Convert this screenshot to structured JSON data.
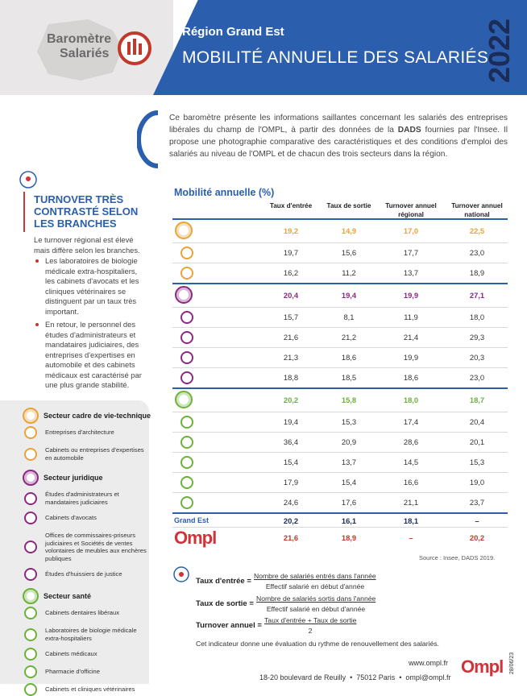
{
  "header": {
    "badge_line1": "Baromètre",
    "badge_line2": "Salariés",
    "region": "Région Grand Est",
    "title": "MOBILITÉ ANNUELLE DES SALARIÉS",
    "year": "2022"
  },
  "intro": {
    "before": "Ce baromètre présente les informations saillantes concernant les salariés des entreprises libérales du champ de l'OMPL, à partir des données de la ",
    "bold": "DADS",
    "after": " fournies par l'Insee. Il propose une photographie comparative des caractéristiques et des conditions d'emploi des salariés au niveau de l'OMPL et de chacun des trois secteurs dans la région."
  },
  "sidebar": {
    "title": "TURNOVER TRÈS CONTRASTÉ SELON LES BRANCHES",
    "paragraph": "Le turnover régional est élevé mais diffère selon les branches.",
    "bullets": [
      "Les laboratoires de biologie médicale extra-hospitaliers, les cabinets d'avocats et les cliniques vétérinaires se distinguent par un taux très important.",
      "En retour, le personnel des études d'administrateurs et mandataires judiciaires, des entreprises d'expertises en automobile et des cabinets médicaux est caractérisé par une plus grande stabilité."
    ]
  },
  "legend": [
    {
      "name": "Secteur cadre de vie-technique",
      "items": [
        "Entreprises d'architecture",
        "Cabinets ou entreprises d'expertises en automobile"
      ]
    },
    {
      "name": "Secteur juridique",
      "items": [
        "Études d'administrateurs et mandataires judiciaires",
        "Cabinets d'avocats",
        "Offices de commissaires-priseurs judiciaires et Sociétés de ventes volontaires de meubles aux enchères publiques",
        "Études d'huissiers de justice"
      ]
    },
    {
      "name": "Secteur santé",
      "items": [
        "Cabinets dentaires libéraux",
        "Laboratoires de biologie médicale extra-hospitaliers",
        "Cabinets médicaux",
        "Pharmacie d'officine",
        "Cabinets et cliniques vétérinaires"
      ]
    }
  ],
  "table": {
    "title": "Mobilité annuelle (%)",
    "columns": [
      "Taux d'entrée",
      "Taux de sortie",
      "Turnover annuel régional",
      "Turnover annuel national"
    ],
    "groups": [
      {
        "total": [
          "19,2",
          "14,9",
          "17,0",
          "22,5"
        ],
        "rows": [
          [
            "19,7",
            "15,6",
            "17,7",
            "23,0"
          ],
          [
            "16,2",
            "11,2",
            "13,7",
            "18,9"
          ]
        ]
      },
      {
        "total": [
          "20,4",
          "19,4",
          "19,9",
          "27,1"
        ],
        "rows": [
          [
            "15,7",
            "8,1",
            "11,9",
            "18,0"
          ],
          [
            "21,6",
            "21,2",
            "21,4",
            "29,3"
          ],
          [
            "21,3",
            "18,6",
            "19,9",
            "20,3"
          ],
          [
            "18,8",
            "18,5",
            "18,6",
            "23,0"
          ]
        ]
      },
      {
        "total": [
          "20,2",
          "15,8",
          "18,0",
          "18,7"
        ],
        "rows": [
          [
            "19,4",
            "15,3",
            "17,4",
            "20,4"
          ],
          [
            "36,4",
            "20,9",
            "28,6",
            "20,1"
          ],
          [
            "15,4",
            "13,7",
            "14,5",
            "15,3"
          ],
          [
            "17,9",
            "15,4",
            "16,6",
            "19,0"
          ],
          [
            "24,6",
            "17,6",
            "21,1",
            "23,7"
          ]
        ]
      }
    ],
    "grand_est": {
      "label": "Grand Est",
      "values": [
        "20,2",
        "16,1",
        "18,1",
        "–"
      ]
    },
    "ompl": {
      "label": "Ompl",
      "values": [
        "21,6",
        "18,9",
        "–",
        "20,2"
      ]
    },
    "source": "Source : Insee, DADS 2019."
  },
  "definitions": {
    "items": [
      {
        "term": "Taux d'entrée =",
        "numerator": "Nombre de salariés entrés dans l'année",
        "denominator": "Effectif salarié en début d'année"
      },
      {
        "term": "Taux de sortie =",
        "numerator": "Nombre de salariés sortis dans l'année",
        "denominator": "Effectif salarié en début d'année"
      },
      {
        "term": "Turnover annuel =",
        "numerator": "Taux d'entrée + Taux de sortie",
        "denominator": "2"
      }
    ],
    "note": "Cet indicateur donne une évaluation du rythme de renouvellement des salariés."
  },
  "footer": {
    "website": "www.ompl.fr",
    "address": "18-20 boulevard de Reuilly  •  75012 Paris  •  ompl@ompl.fr",
    "logo": "Ompl",
    "date": "28/06/23"
  }
}
